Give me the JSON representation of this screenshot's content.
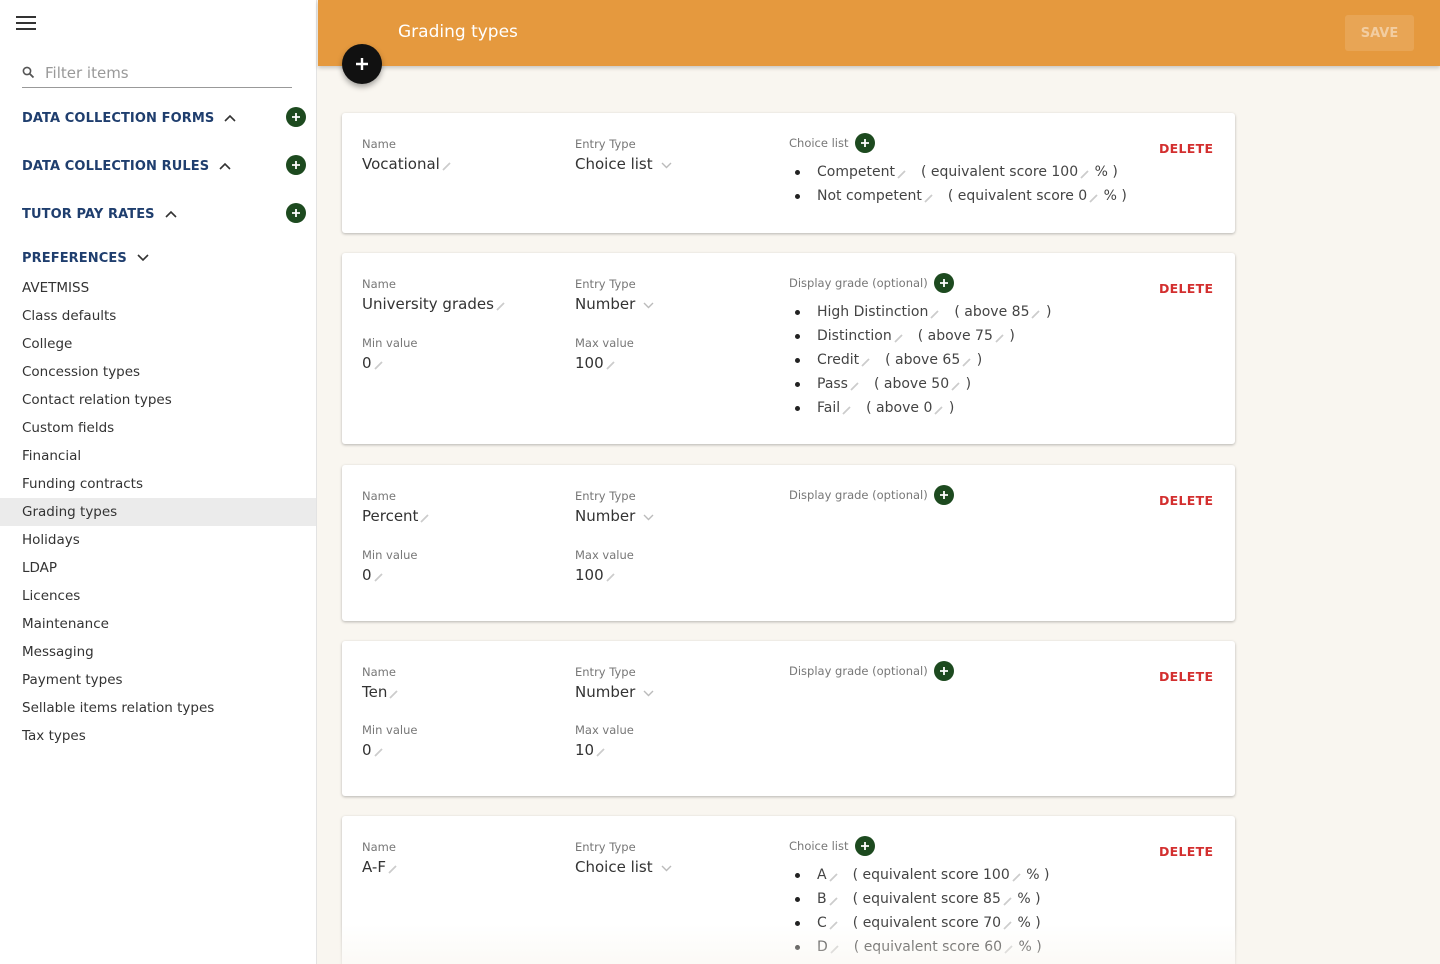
{
  "sidebar": {
    "filter_placeholder": "Filter items",
    "sections": [
      {
        "title": "DATA COLLECTION FORMS",
        "expanded": false
      },
      {
        "title": "DATA COLLECTION RULES",
        "expanded": false
      },
      {
        "title": "TUTOR PAY RATES",
        "expanded": false
      },
      {
        "title": "PREFERENCES",
        "expanded": true
      }
    ],
    "preferences": [
      "AVETMISS",
      "Class defaults",
      "College",
      "Concession types",
      "Contact relation types",
      "Custom fields",
      "Financial",
      "Funding contracts",
      "Grading types",
      "Holidays",
      "LDAP",
      "Licences",
      "Maintenance",
      "Messaging",
      "Payment types",
      "Sellable items relation types",
      "Tax types"
    ],
    "active_item": "Grading types"
  },
  "header": {
    "title": "Grading types",
    "save_label": "SAVE"
  },
  "labels": {
    "name": "Name",
    "entry_type": "Entry Type",
    "min_value": "Min value",
    "max_value": "Max value",
    "choice_list": "Choice list",
    "display_grade": "Display grade (optional)",
    "delete": "DELETE"
  },
  "cards": [
    {
      "name": "Vocational",
      "entry_type": "Choice list",
      "choices": [
        {
          "label": "Competent",
          "score": "100"
        },
        {
          "label": "Not competent",
          "score": "0"
        }
      ]
    },
    {
      "name": "University grades",
      "entry_type": "Number",
      "min": "0",
      "max": "100",
      "grades": [
        {
          "label": "High Distinction",
          "above": "85"
        },
        {
          "label": "Distinction",
          "above": "75"
        },
        {
          "label": "Credit",
          "above": "65"
        },
        {
          "label": "Pass",
          "above": "50"
        },
        {
          "label": "Fail",
          "above": "0"
        }
      ]
    },
    {
      "name": "Percent",
      "entry_type": "Number",
      "min": "0",
      "max": "100"
    },
    {
      "name": "Ten",
      "entry_type": "Number",
      "min": "0",
      "max": "10"
    },
    {
      "name": "A-F",
      "entry_type": "Choice list",
      "choices": [
        {
          "label": "A",
          "score": "100"
        },
        {
          "label": "B",
          "score": "85"
        },
        {
          "label": "C",
          "score": "70"
        },
        {
          "label": "D",
          "score": "60"
        }
      ]
    }
  ],
  "strings": {
    "equiv_prefix": "( equivalent score",
    "equiv_suffix": "% )",
    "above_prefix": "( above",
    "above_suffix": ")"
  },
  "colors": {
    "header": "#e5993e",
    "accent_green": "#1d4a1f",
    "section_title": "#1f3e6e",
    "delete": "#d32f2f"
  },
  "icons": [
    "menu-icon",
    "search-icon",
    "chevron-up-icon",
    "chevron-down-icon",
    "add-circle-icon",
    "pencil-icon",
    "dropdown-arrow-icon",
    "plus-icon"
  ]
}
